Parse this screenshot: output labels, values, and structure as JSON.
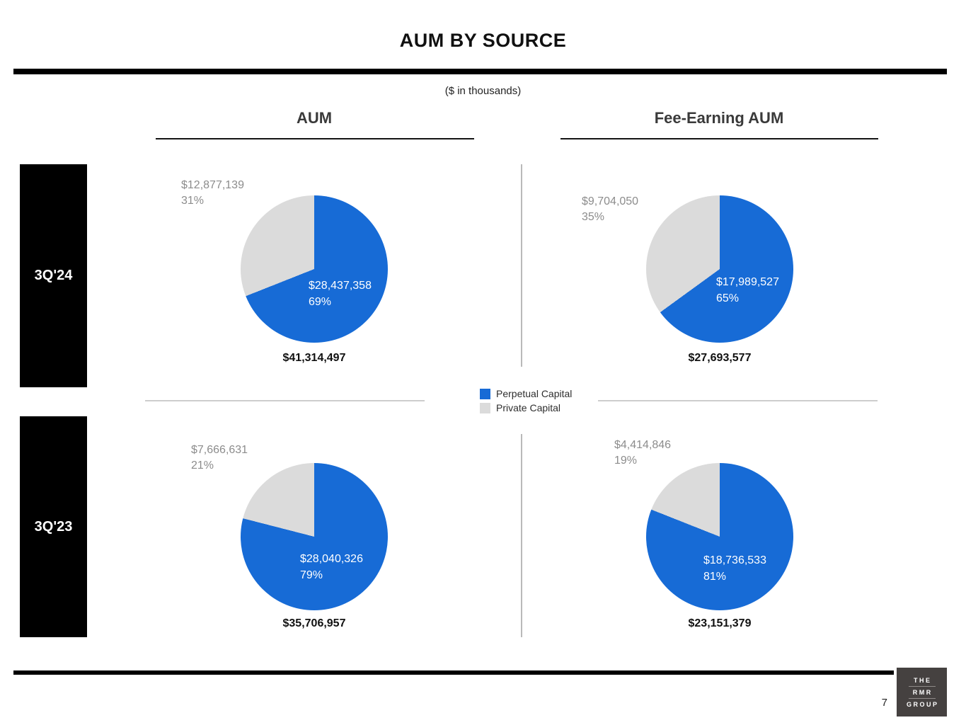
{
  "slide": {
    "title": "AUM BY SOURCE",
    "subtitle": "($ in thousands)",
    "page_number": "7"
  },
  "columns": {
    "aum": "AUM",
    "fee_earning": "Fee-Earning AUM"
  },
  "rows": {
    "q24": "3Q'24",
    "q23": "3Q'23"
  },
  "legend": {
    "items": [
      {
        "label": "Perpetual Capital",
        "color": "#176bd6"
      },
      {
        "label": "Private Capital",
        "color": "#dbdbdb"
      }
    ]
  },
  "logo": {
    "line1": "THE",
    "line2": "RMR",
    "line3": "GROUP"
  },
  "chart_data": [
    {
      "type": "pie",
      "row": "3Q'24",
      "column": "AUM",
      "start_angle_deg": 0,
      "direction": "clockwise",
      "slices": [
        {
          "name": "Perpetual Capital",
          "value": 28437358,
          "value_display": "$28,437,358",
          "pct": 69,
          "pct_display": "69%",
          "color": "#176bd6"
        },
        {
          "name": "Private Capital",
          "value": 12877139,
          "value_display": "$12,877,139",
          "pct": 31,
          "pct_display": "31%",
          "color": "#dbdbdb"
        }
      ],
      "total": 41314497,
      "total_display": "$41,314,497"
    },
    {
      "type": "pie",
      "row": "3Q'24",
      "column": "Fee-Earning AUM",
      "start_angle_deg": 0,
      "direction": "clockwise",
      "slices": [
        {
          "name": "Perpetual Capital",
          "value": 17989527,
          "value_display": "$17,989,527",
          "pct": 65,
          "pct_display": "65%",
          "color": "#176bd6"
        },
        {
          "name": "Private Capital",
          "value": 9704050,
          "value_display": "$9,704,050",
          "pct": 35,
          "pct_display": "35%",
          "color": "#dbdbdb"
        }
      ],
      "total": 27693577,
      "total_display": "$27,693,577"
    },
    {
      "type": "pie",
      "row": "3Q'23",
      "column": "AUM",
      "start_angle_deg": 0,
      "direction": "clockwise",
      "slices": [
        {
          "name": "Perpetual Capital",
          "value": 28040326,
          "value_display": "$28,040,326",
          "pct": 79,
          "pct_display": "79%",
          "color": "#176bd6"
        },
        {
          "name": "Private Capital",
          "value": 7666631,
          "value_display": "$7,666,631",
          "pct": 21,
          "pct_display": "21%",
          "color": "#dbdbdb"
        }
      ],
      "total": 35706957,
      "total_display": "$35,706,957"
    },
    {
      "type": "pie",
      "row": "3Q'23",
      "column": "Fee-Earning AUM",
      "start_angle_deg": 0,
      "direction": "clockwise",
      "slices": [
        {
          "name": "Perpetual Capital",
          "value": 18736533,
          "value_display": "$18,736,533",
          "pct": 81,
          "pct_display": "81%",
          "color": "#176bd6"
        },
        {
          "name": "Private Capital",
          "value": 4414846,
          "value_display": "$4,414,846",
          "pct": 19,
          "pct_display": "19%",
          "color": "#dbdbdb"
        }
      ],
      "total": 23151379,
      "total_display": "$23,151,379"
    }
  ]
}
